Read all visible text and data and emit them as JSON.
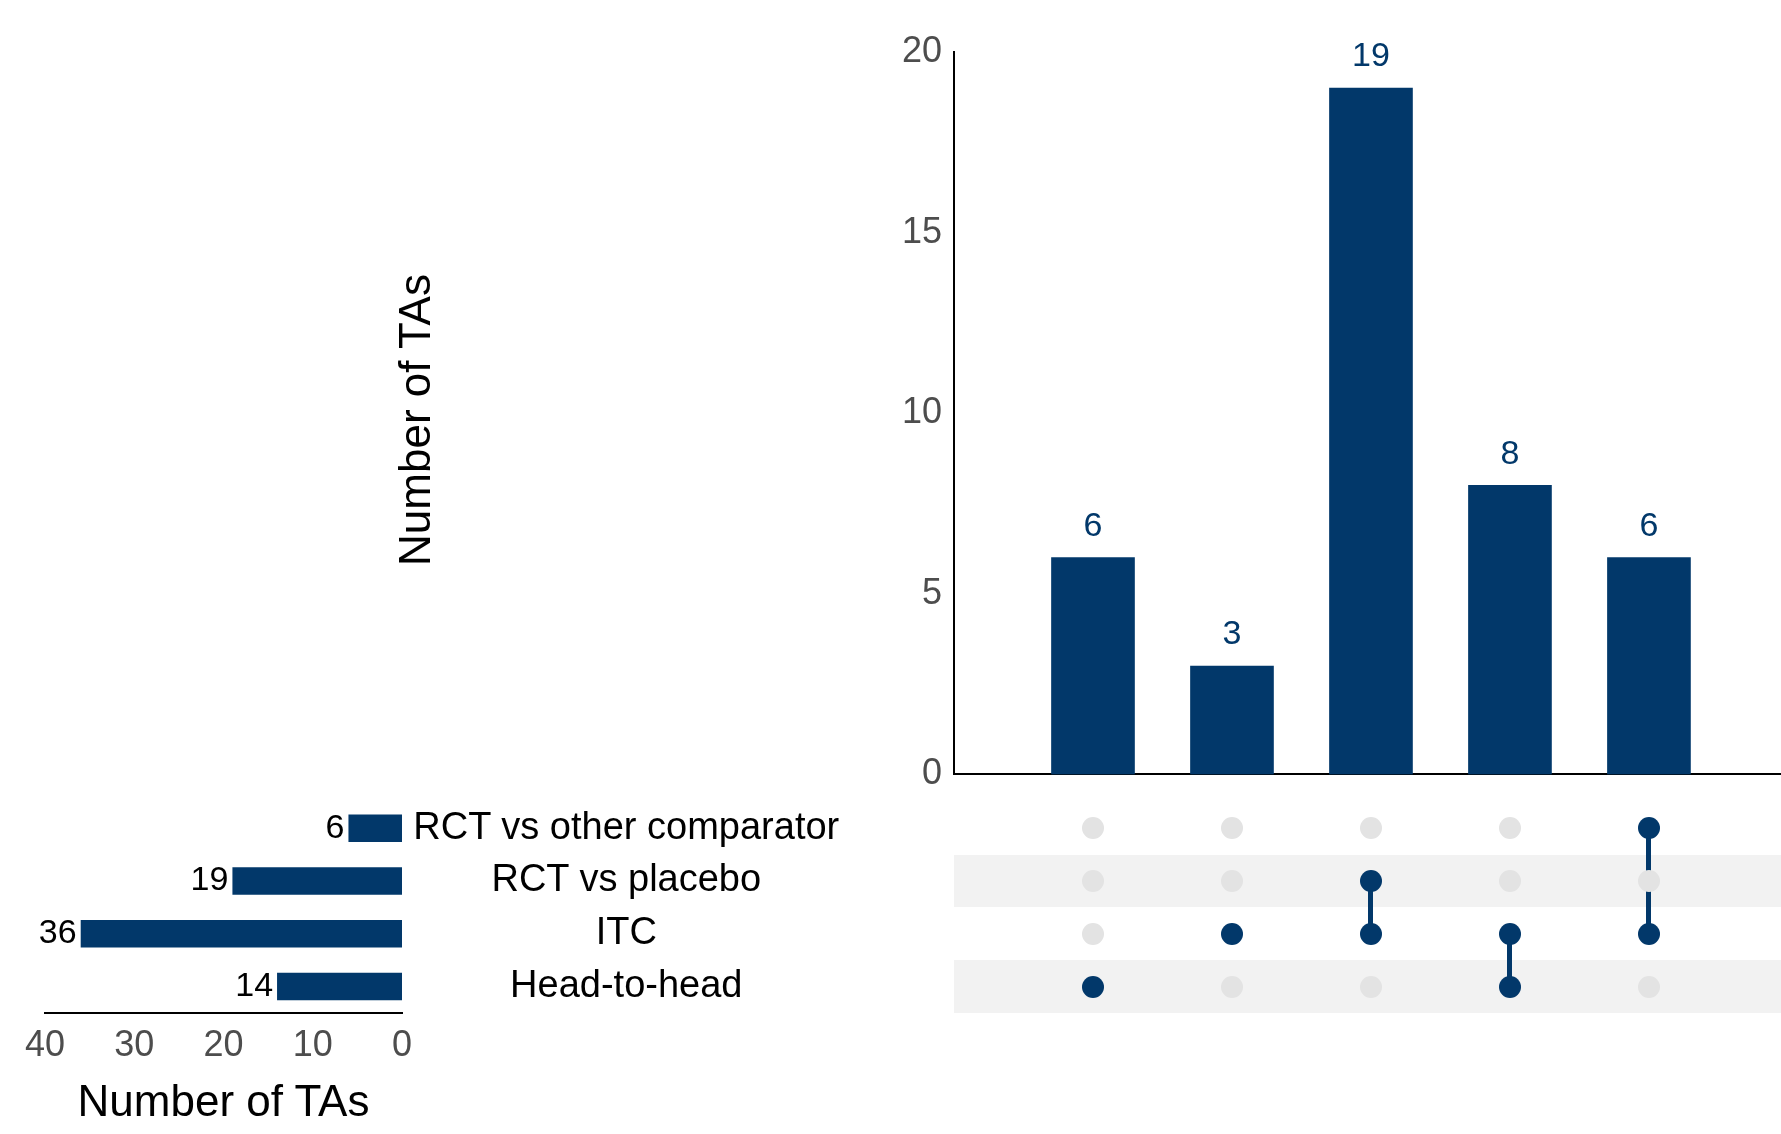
{
  "chart_data": [
    {
      "type": "bar",
      "categories": [
        null,
        null,
        null,
        null,
        null
      ],
      "values": [
        6,
        3,
        19,
        8,
        6
      ],
      "color": "#02386a",
      "ylim": [
        0,
        20
      ],
      "yticks": [
        0,
        5,
        10,
        15,
        20
      ],
      "ylabel": "Number of TAs",
      "data_labels": true,
      "grid": false
    },
    {
      "type": "bar",
      "orientation": "horizontal",
      "categories": [
        "RCT vs other comparator",
        "RCT vs placebo",
        "ITC",
        "Head-to-head"
      ],
      "values": [
        6,
        19,
        36,
        14
      ],
      "color": "#02386a",
      "xlim": [
        40,
        0
      ],
      "xticks": [
        0,
        10,
        20,
        30,
        40
      ],
      "xlabel": "Number of TAs",
      "data_labels": true,
      "grid": false
    }
  ]
}
